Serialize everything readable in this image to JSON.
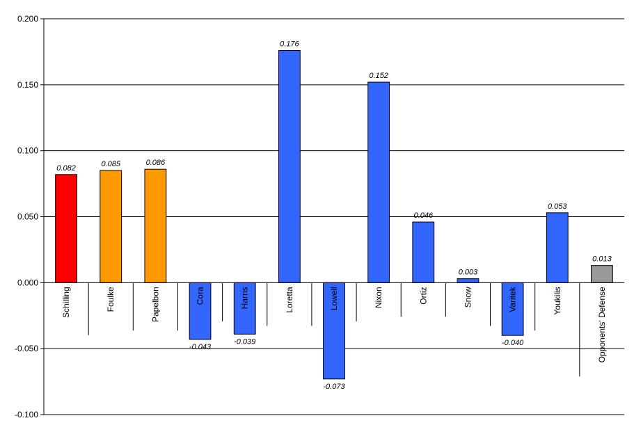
{
  "chart_data": {
    "type": "bar",
    "title": "",
    "xlabel": "",
    "ylabel": "",
    "ylim": [
      -0.1,
      0.2
    ],
    "yticks": [
      -0.1,
      -0.05,
      0.0,
      0.05,
      0.1,
      0.15,
      0.2
    ],
    "ytick_labels": [
      "-0.100",
      "-0.050",
      "0.000",
      "0.050",
      "0.100",
      "0.150",
      "0.200"
    ],
    "grid": true,
    "legend": "none",
    "categories": [
      "Schilling",
      "Foulke",
      "Papelbon",
      "Cora",
      "Harris",
      "Loretta",
      "Lowell",
      "Nixon",
      "Ortiz",
      "Snow",
      "Varitek",
      "Youkilis",
      "Opponents' Defense"
    ],
    "values": [
      0.082,
      0.085,
      0.086,
      -0.043,
      -0.039,
      0.176,
      -0.073,
      0.152,
      0.046,
      0.003,
      -0.04,
      0.053,
      0.013
    ],
    "data_labels": [
      "0.082",
      "0.085",
      "0.086",
      "-0.043",
      "-0.039",
      "0.176",
      "-0.073",
      "0.152",
      "0.046",
      "0.003",
      "-0.040",
      "0.053",
      "0.013"
    ],
    "colors": [
      "#ff0000",
      "#ff9900",
      "#ff9900",
      "#3366ff",
      "#3366ff",
      "#3366ff",
      "#3366ff",
      "#3366ff",
      "#3366ff",
      "#3366ff",
      "#3366ff",
      "#3366ff",
      "#999999"
    ]
  }
}
